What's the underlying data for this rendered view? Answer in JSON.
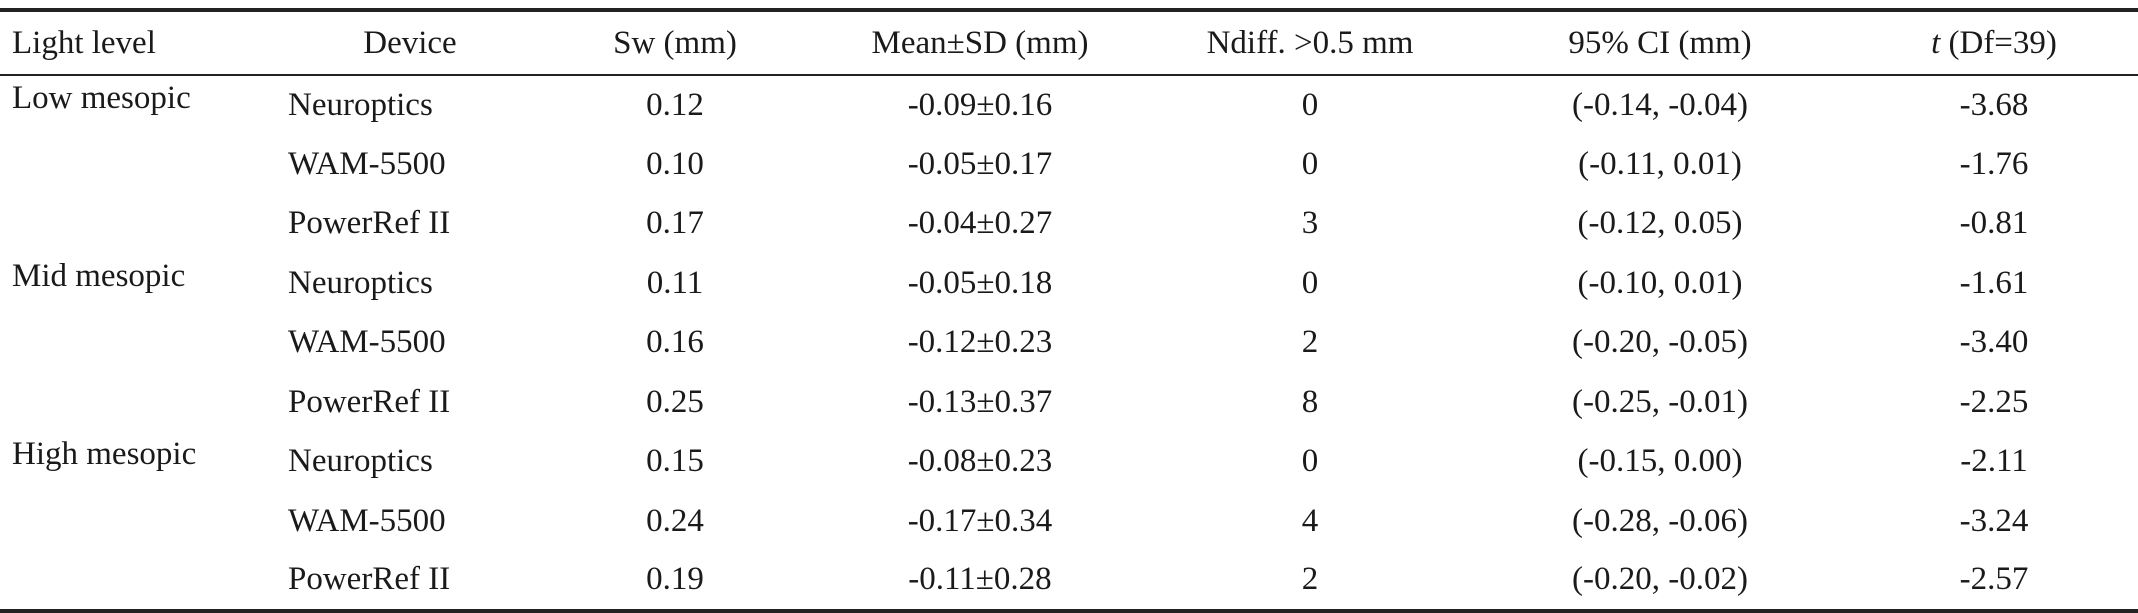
{
  "table": {
    "headers": {
      "light_level": "Light level",
      "device": "Device",
      "sw": "Sw (mm)",
      "mean_sd": "Mean±SD (mm)",
      "ndiff": "Ndiff. >0.5 mm",
      "ci": "95% CI (mm)",
      "t_italic": "t",
      "t_rest": " (Df=39)"
    },
    "groups": [
      {
        "light_level": "Low mesopic",
        "rows": [
          {
            "device": "Neuroptics",
            "sw": "0.12",
            "mean_sd": "-0.09±0.16",
            "ndiff": "0",
            "ci": "(-0.14, -0.04)",
            "t": "-3.68"
          },
          {
            "device": "WAM-5500",
            "sw": "0.10",
            "mean_sd": "-0.05±0.17",
            "ndiff": "0",
            "ci": "(-0.11, 0.01)",
            "t": "-1.76"
          },
          {
            "device": "PowerRef II",
            "sw": "0.17",
            "mean_sd": "-0.04±0.27",
            "ndiff": "3",
            "ci": "(-0.12, 0.05)",
            "t": "-0.81"
          }
        ]
      },
      {
        "light_level": "Mid mesopic",
        "rows": [
          {
            "device": "Neuroptics",
            "sw": "0.11",
            "mean_sd": "-0.05±0.18",
            "ndiff": "0",
            "ci": "(-0.10, 0.01)",
            "t": "-1.61"
          },
          {
            "device": "WAM-5500",
            "sw": "0.16",
            "mean_sd": "-0.12±0.23",
            "ndiff": "2",
            "ci": "(-0.20, -0.05)",
            "t": "-3.40"
          },
          {
            "device": "PowerRef II",
            "sw": "0.25",
            "mean_sd": "-0.13±0.37",
            "ndiff": "8",
            "ci": "(-0.25, -0.01)",
            "t": "-2.25"
          }
        ]
      },
      {
        "light_level": "High mesopic",
        "rows": [
          {
            "device": "Neuroptics",
            "sw": "0.15",
            "mean_sd": "-0.08±0.23",
            "ndiff": "0",
            "ci": "(-0.15, 0.00)",
            "t": "-2.11"
          },
          {
            "device": "WAM-5500",
            "sw": "0.24",
            "mean_sd": "-0.17±0.34",
            "ndiff": "4",
            "ci": "(-0.28, -0.06)",
            "t": "-3.24"
          },
          {
            "device": "PowerRef II",
            "sw": "0.19",
            "mean_sd": "-0.11±0.28",
            "ndiff": "2",
            "ci": "(-0.20, -0.02)",
            "t": "-2.57"
          }
        ]
      }
    ]
  }
}
